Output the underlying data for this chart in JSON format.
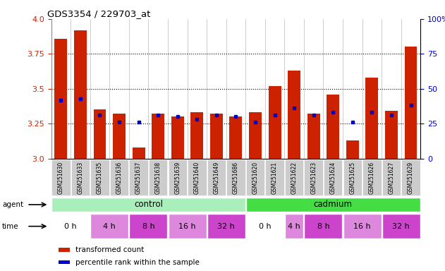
{
  "title": "GDS3354 / 229703_at",
  "samples": [
    "GSM251630",
    "GSM251633",
    "GSM251635",
    "GSM251636",
    "GSM251637",
    "GSM251638",
    "GSM251639",
    "GSM251640",
    "GSM251649",
    "GSM251686",
    "GSM251620",
    "GSM251621",
    "GSM251622",
    "GSM251623",
    "GSM251624",
    "GSM251625",
    "GSM251626",
    "GSM251627",
    "GSM251629"
  ],
  "transformed_counts": [
    3.86,
    3.92,
    3.35,
    3.32,
    3.08,
    3.32,
    3.3,
    3.33,
    3.32,
    3.3,
    3.33,
    3.52,
    3.63,
    3.32,
    3.46,
    3.13,
    3.58,
    3.34,
    3.8
  ],
  "percentile_ranks": [
    3.42,
    3.43,
    3.31,
    3.26,
    3.26,
    3.31,
    3.3,
    3.28,
    3.31,
    3.3,
    3.26,
    3.31,
    3.36,
    3.31,
    3.33,
    3.26,
    3.33,
    3.31,
    3.38
  ],
  "ylim_left": [
    3.0,
    4.0
  ],
  "ylim_right": [
    0,
    100
  ],
  "yticks_left": [
    3.0,
    3.25,
    3.5,
    3.75,
    4.0
  ],
  "yticks_right": [
    0,
    25,
    50,
    75,
    100
  ],
  "bar_color": "#cc2200",
  "dot_color": "#0000cc",
  "agent_control_label": "control",
  "agent_cadmium_label": "cadmium",
  "control_color": "#aaeebb",
  "cadmium_color": "#44dd44",
  "time_white": "#ffffff",
  "time_light_purple": "#dd88dd",
  "time_dark_purple": "#cc44cc",
  "legend_red_label": "transformed count",
  "legend_blue_label": "percentile rank within the sample",
  "background_color": "#ffffff",
  "axis_label_color_left": "#cc2200",
  "axis_label_color_right": "#0000cc",
  "xtick_bg": "#cccccc",
  "time_groups_ctrl": [
    [
      0,
      2,
      "0 h",
      "#ffffff"
    ],
    [
      2,
      4,
      "4 h",
      "#dd88dd"
    ],
    [
      4,
      6,
      "8 h",
      "#cc44cc"
    ],
    [
      6,
      8,
      "16 h",
      "#dd88dd"
    ],
    [
      8,
      10,
      "32 h",
      "#cc44cc"
    ]
  ],
  "time_groups_cadm": [
    [
      10,
      12,
      "0 h",
      "#ffffff"
    ],
    [
      12,
      13,
      "4 h",
      "#dd88dd"
    ],
    [
      13,
      15,
      "8 h",
      "#cc44cc"
    ],
    [
      15,
      17,
      "16 h",
      "#dd88dd"
    ],
    [
      17,
      19,
      "32 h",
      "#cc44cc"
    ]
  ]
}
